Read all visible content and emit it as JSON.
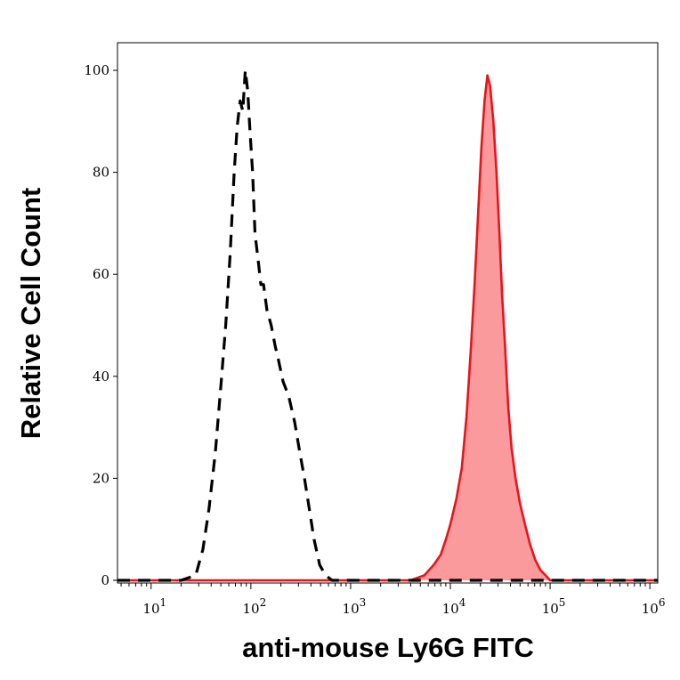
{
  "chart_data": {
    "type": "area",
    "title": "",
    "xlabel": "anti-mouse Ly6G FITC",
    "ylabel": "Relative Cell Count",
    "x_scale": "log",
    "xlim": [
      4.6,
      1200000
    ],
    "ylim": [
      0,
      100
    ],
    "grid": false,
    "legend": "none",
    "x_ticks": [
      {
        "value": 10,
        "base": "10",
        "exp": "1"
      },
      {
        "value": 100,
        "base": "10",
        "exp": "2"
      },
      {
        "value": 1000,
        "base": "10",
        "exp": "3"
      },
      {
        "value": 10000,
        "base": "10",
        "exp": "4"
      },
      {
        "value": 100000,
        "base": "10",
        "exp": "5"
      },
      {
        "value": 1000000,
        "base": "10",
        "exp": "6"
      }
    ],
    "y_ticks": [
      "0",
      "20",
      "40",
      "60",
      "80",
      "100"
    ],
    "series": [
      {
        "style": "dashed",
        "color": "#000000",
        "filled": false,
        "points": [
          [
            4.6,
            0
          ],
          [
            20,
            0
          ],
          [
            28,
            1
          ],
          [
            33,
            6
          ],
          [
            38,
            14
          ],
          [
            44,
            25
          ],
          [
            50,
            38
          ],
          [
            56,
            50
          ],
          [
            62,
            64
          ],
          [
            68,
            80
          ],
          [
            73,
            89
          ],
          [
            78,
            94
          ],
          [
            83,
            92
          ],
          [
            88,
            100
          ],
          [
            93,
            96
          ],
          [
            98,
            88
          ],
          [
            104,
            80
          ],
          [
            110,
            68
          ],
          [
            118,
            63
          ],
          [
            126,
            58
          ],
          [
            134,
            58
          ],
          [
            145,
            53
          ],
          [
            160,
            50
          ],
          [
            175,
            46
          ],
          [
            190,
            43
          ],
          [
            210,
            39
          ],
          [
            240,
            36
          ],
          [
            275,
            31
          ],
          [
            310,
            25
          ],
          [
            345,
            20
          ],
          [
            385,
            14
          ],
          [
            430,
            8
          ],
          [
            490,
            3
          ],
          [
            560,
            1
          ],
          [
            650,
            0
          ],
          [
            1200000,
            0
          ]
        ]
      },
      {
        "style": "solid",
        "color": "#e8141b",
        "fill": "#fb9a9c",
        "filled": true,
        "points": [
          [
            4.6,
            0
          ],
          [
            4000,
            0
          ],
          [
            5500,
            1
          ],
          [
            6800,
            3
          ],
          [
            8000,
            5
          ],
          [
            9000,
            8
          ],
          [
            10000,
            11
          ],
          [
            11500,
            16
          ],
          [
            13000,
            22
          ],
          [
            14500,
            32
          ],
          [
            16000,
            45
          ],
          [
            17500,
            58
          ],
          [
            19000,
            72
          ],
          [
            20500,
            85
          ],
          [
            22000,
            94
          ],
          [
            23500,
            99
          ],
          [
            25000,
            97
          ],
          [
            27000,
            90
          ],
          [
            29000,
            80
          ],
          [
            31000,
            68
          ],
          [
            33000,
            56
          ],
          [
            35500,
            45
          ],
          [
            38000,
            34
          ],
          [
            41000,
            26
          ],
          [
            45000,
            20
          ],
          [
            50000,
            15
          ],
          [
            56000,
            11
          ],
          [
            63000,
            7
          ],
          [
            71000,
            4
          ],
          [
            80000,
            2
          ],
          [
            90000,
            1
          ],
          [
            100000,
            0
          ],
          [
            1200000,
            0
          ]
        ]
      }
    ]
  }
}
